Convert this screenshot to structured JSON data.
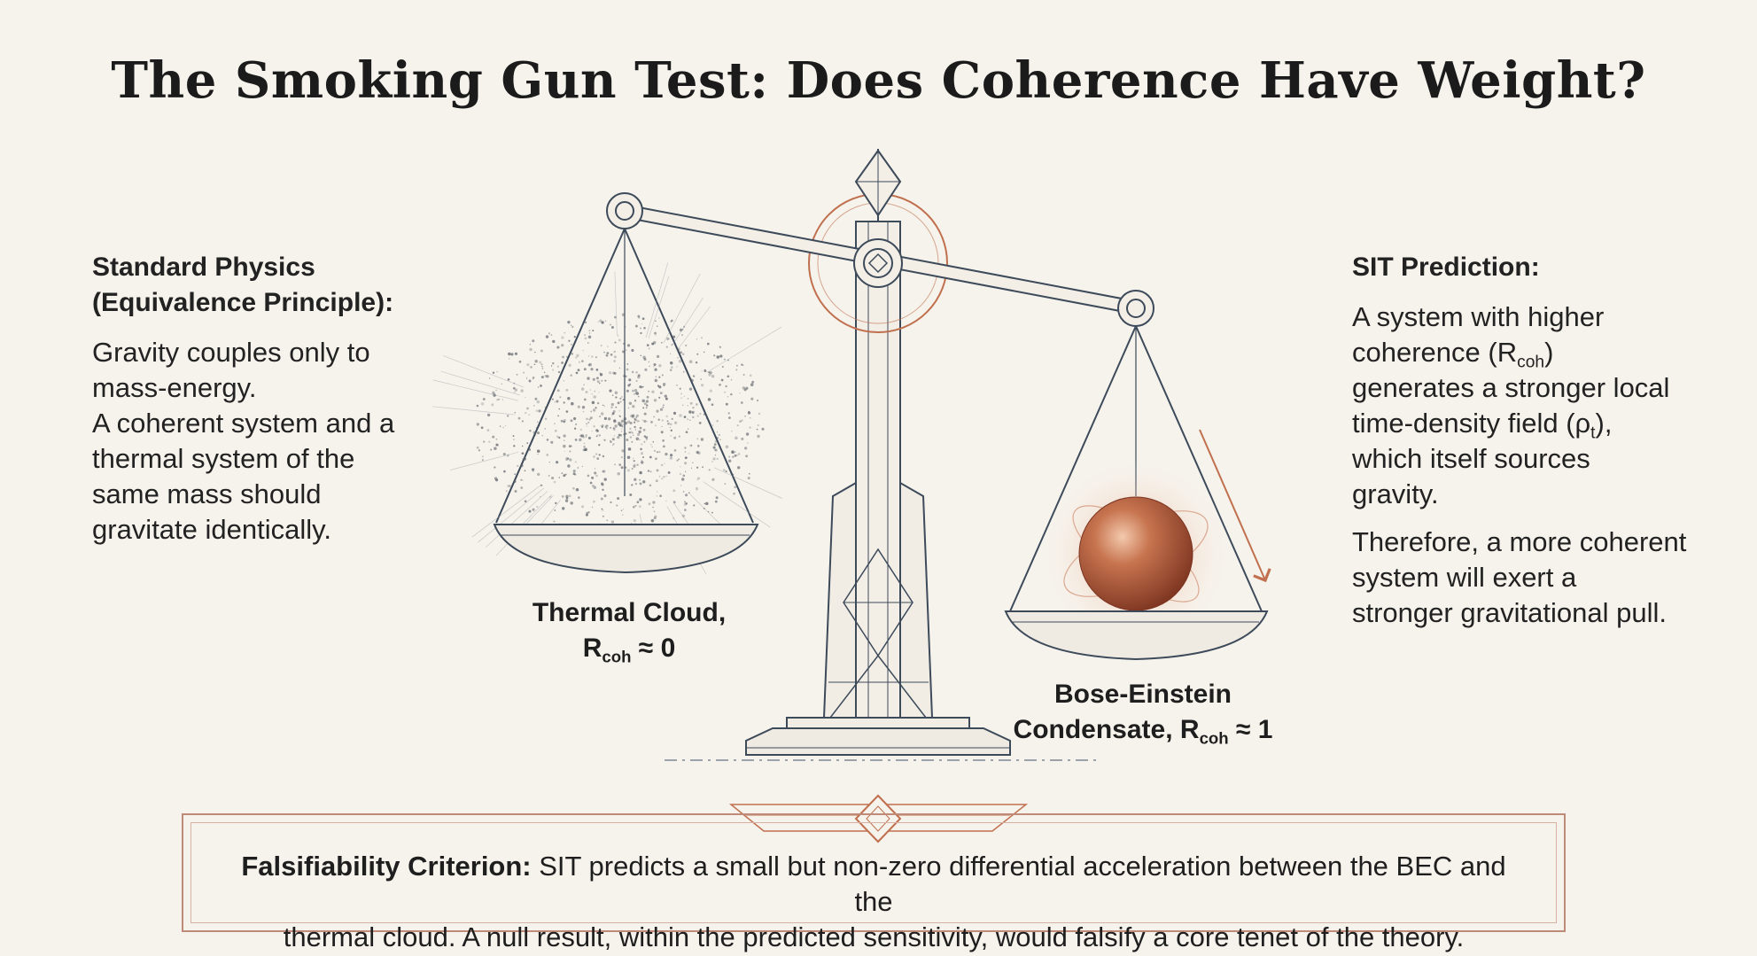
{
  "title": "The Smoking Gun Test: Does Coherence Have Weight?",
  "standard_physics": {
    "heading_line1": "Standard Physics",
    "heading_line2": "(Equivalence Principle):",
    "body_line1": "Gravity couples only to",
    "body_line2": "mass-energy.",
    "body_line3": "A coherent system and a",
    "body_line4": "thermal system of the",
    "body_line5": "same mass should",
    "body_line6": "gravitate identically."
  },
  "sit_prediction": {
    "heading": "SIT Prediction:",
    "body_line1": "A system with higher",
    "body_line2_pre": "coherence (R",
    "body_line2_sub": "coh",
    "body_line2_post": ")",
    "body_line3": "generates a stronger local",
    "body_line4_pre": "time-density field (ρ",
    "body_line4_sub": "t",
    "body_line4_post": "),",
    "body_line5": "which itself sources",
    "body_line6": "gravity.",
    "body2_line1": "Therefore, a more coherent",
    "body2_line2": "system will exert a",
    "body2_line3": "stronger gravitational pull."
  },
  "thermal_cloud": {
    "line1": "Thermal Cloud,",
    "line2_pre": "R",
    "line2_sub": "coh",
    "line2_post": " ≈ 0"
  },
  "bec": {
    "line1": "Bose-Einstein",
    "line2_pre": "Condensate, R",
    "line2_sub": "coh",
    "line2_post": " ≈ 1"
  },
  "criterion": {
    "label": "Falsifiability Criterion:",
    "text_line1": " SIT predicts a small but non-zero differential acceleration between the BEC and the",
    "text_line2": "thermal cloud. A null result, within the predicted sensitivity, would falsify a core tenet of the theory."
  },
  "colors": {
    "background": "#f6f3ec",
    "line": "#3d4a5a",
    "accent": "#c0704e",
    "sphere": "#b4583a"
  }
}
